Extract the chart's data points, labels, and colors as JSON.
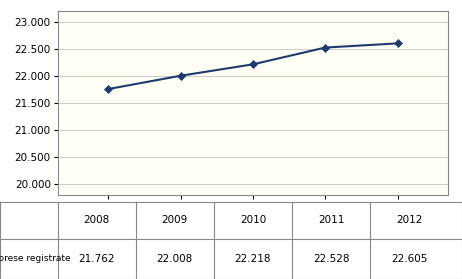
{
  "years": [
    2008,
    2009,
    2010,
    2011,
    2012
  ],
  "values": [
    21762,
    22008,
    22218,
    22528,
    22605
  ],
  "yticks": [
    20000,
    20500,
    21000,
    21500,
    22000,
    22500,
    23000
  ],
  "ylim": [
    19800,
    23200
  ],
  "xlim": [
    2007.3,
    2012.7
  ],
  "plot_bg_color": "#FFFFF5",
  "outer_bg_color": "#FFFFFF",
  "line_color": "#1F3A6E",
  "marker_color": "#1F3A6E",
  "grid_color": "#CCCCCC",
  "border_color": "#888888",
  "table_label": "Imprese registrate",
  "table_values": [
    "21.762",
    "22.008",
    "22.218",
    "22.528",
    "22.605"
  ],
  "year_labels": [
    "2008",
    "2009",
    "2010",
    "2011",
    "2012"
  ]
}
